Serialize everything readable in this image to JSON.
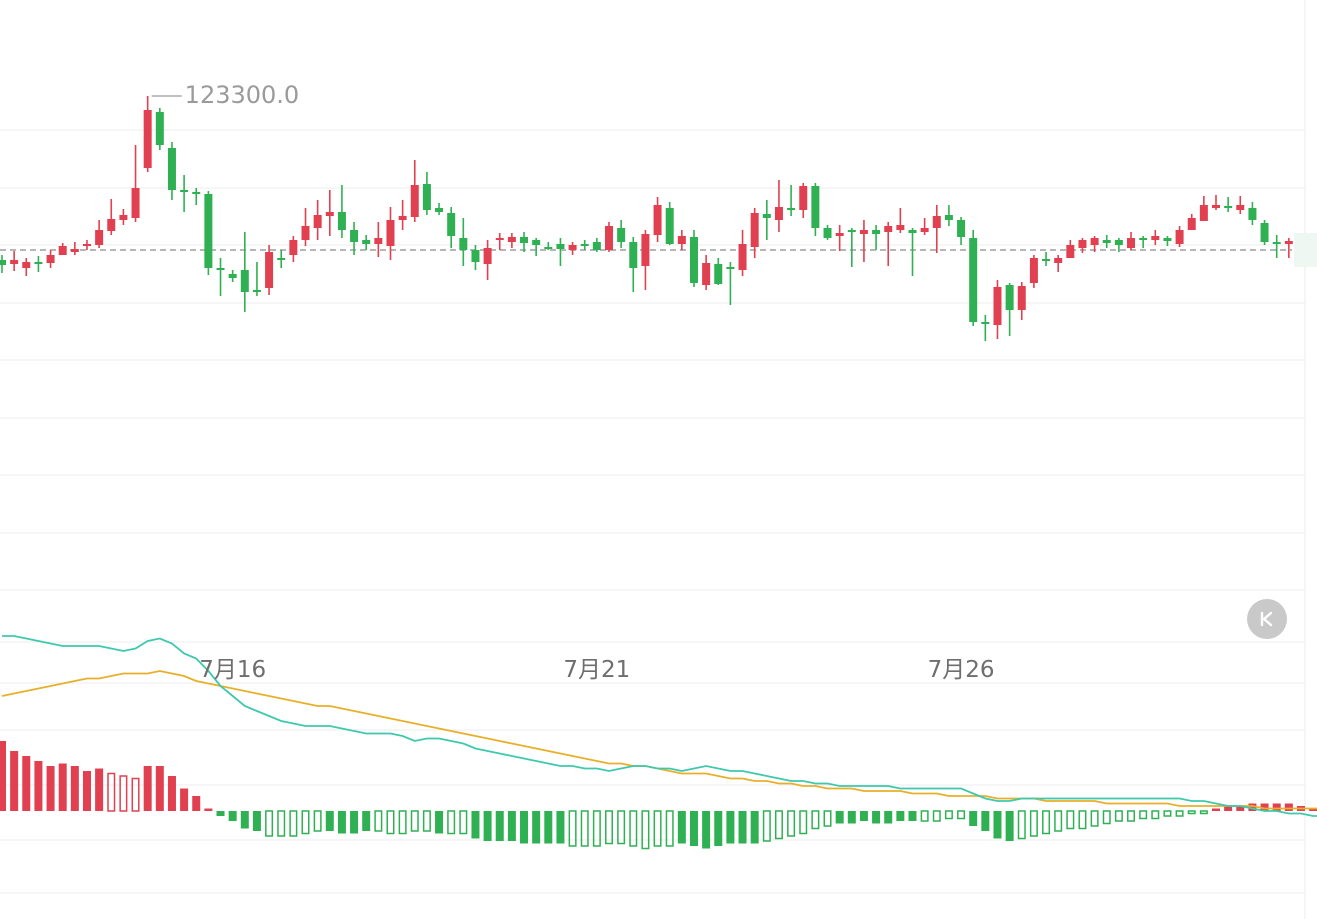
{
  "chart_data": {
    "type": "candlestick",
    "max_label": "123300.0",
    "x_tick_labels": [
      {
        "label": "7月16",
        "candle": 19
      },
      {
        "label": "7月21",
        "candle": 49
      },
      {
        "label": "7月26",
        "candle": 79
      }
    ],
    "candles": [
      [
        260,
        265,
        255,
        273
      ],
      [
        264,
        260,
        251,
        271
      ],
      [
        268,
        262,
        258,
        276
      ],
      [
        262,
        262,
        256,
        272
      ],
      [
        263,
        255,
        250,
        268
      ],
      [
        255,
        246,
        243,
        253
      ],
      [
        252,
        249,
        242,
        255
      ],
      [
        246,
        244,
        240,
        250
      ],
      [
        245,
        230,
        220,
        248
      ],
      [
        231,
        219,
        199,
        235
      ],
      [
        220,
        215,
        209,
        225
      ],
      [
        218,
        188,
        145,
        222
      ],
      [
        168,
        110,
        96,
        172
      ],
      [
        112,
        145,
        108,
        150
      ],
      [
        148,
        190,
        142,
        200
      ],
      [
        190,
        191,
        175,
        212
      ],
      [
        192,
        193,
        188,
        205
      ],
      [
        194,
        268,
        191,
        275
      ],
      [
        268,
        270,
        258,
        296
      ],
      [
        274,
        278,
        270,
        282
      ],
      [
        270,
        292,
        232,
        312
      ],
      [
        290,
        290,
        262,
        296
      ],
      [
        288,
        252,
        245,
        295
      ],
      [
        258,
        258,
        250,
        268
      ],
      [
        255,
        240,
        236,
        262
      ],
      [
        240,
        226,
        208,
        246
      ],
      [
        228,
        215,
        200,
        240
      ],
      [
        216,
        212,
        190,
        236
      ],
      [
        212,
        230,
        185,
        238
      ],
      [
        230,
        242,
        222,
        255
      ],
      [
        240,
        244,
        235,
        250
      ],
      [
        244,
        238,
        222,
        257
      ],
      [
        246,
        220,
        207,
        260
      ],
      [
        220,
        216,
        200,
        230
      ],
      [
        217,
        185,
        160,
        222
      ],
      [
        184,
        210,
        172,
        215
      ],
      [
        208,
        212,
        203,
        215
      ],
      [
        213,
        236,
        207,
        248
      ],
      [
        238,
        250,
        218,
        266
      ],
      [
        250,
        262,
        245,
        270
      ],
      [
        264,
        248,
        240,
        280
      ],
      [
        240,
        238,
        233,
        250
      ],
      [
        242,
        237,
        233,
        248
      ],
      [
        237,
        243,
        232,
        252
      ],
      [
        240,
        245,
        238,
        256
      ],
      [
        247,
        247,
        242,
        250
      ],
      [
        244,
        249,
        238,
        266
      ],
      [
        250,
        245,
        242,
        255
      ],
      [
        244,
        245,
        240,
        250
      ],
      [
        242,
        250,
        238,
        252
      ],
      [
        250,
        226,
        222,
        252
      ],
      [
        228,
        242,
        220,
        248
      ],
      [
        242,
        268,
        237,
        292
      ],
      [
        266,
        234,
        230,
        290
      ],
      [
        235,
        205,
        197,
        242
      ],
      [
        208,
        244,
        202,
        245
      ],
      [
        244,
        236,
        230,
        250
      ],
      [
        237,
        283,
        230,
        287
      ],
      [
        285,
        263,
        255,
        290
      ],
      [
        264,
        284,
        258,
        285
      ],
      [
        267,
        268,
        262,
        305
      ],
      [
        270,
        244,
        230,
        276
      ],
      [
        247,
        213,
        208,
        258
      ],
      [
        214,
        218,
        200,
        240
      ],
      [
        220,
        207,
        180,
        232
      ],
      [
        208,
        208,
        185,
        216
      ],
      [
        210,
        186,
        183,
        218
      ],
      [
        186,
        228,
        183,
        236
      ],
      [
        228,
        238,
        225,
        240
      ],
      [
        236,
        233,
        225,
        251
      ],
      [
        230,
        232,
        228,
        267
      ],
      [
        234,
        230,
        220,
        262
      ],
      [
        230,
        234,
        225,
        250
      ],
      [
        232,
        226,
        222,
        266
      ],
      [
        230,
        225,
        208,
        233
      ],
      [
        230,
        233,
        228,
        276
      ],
      [
        232,
        228,
        218,
        235
      ],
      [
        228,
        216,
        205,
        253
      ],
      [
        215,
        220,
        205,
        226
      ],
      [
        220,
        237,
        217,
        245
      ],
      [
        238,
        322,
        230,
        326
      ],
      [
        322,
        322,
        315,
        341
      ],
      [
        325,
        287,
        280,
        339
      ],
      [
        285,
        310,
        283,
        336
      ],
      [
        310,
        286,
        282,
        320
      ],
      [
        283,
        258,
        255,
        288
      ],
      [
        259,
        260,
        252,
        266
      ],
      [
        263,
        258,
        255,
        272
      ],
      [
        258,
        245,
        240,
        258
      ],
      [
        248,
        240,
        238,
        253
      ],
      [
        245,
        238,
        236,
        252
      ],
      [
        240,
        243,
        235,
        248
      ],
      [
        240,
        245,
        238,
        252
      ],
      [
        248,
        238,
        232,
        250
      ],
      [
        238,
        240,
        236,
        248
      ],
      [
        240,
        236,
        230,
        245
      ],
      [
        238,
        241,
        236,
        246
      ],
      [
        244,
        230,
        226,
        247
      ],
      [
        230,
        218,
        214,
        228
      ],
      [
        221,
        205,
        196,
        221
      ],
      [
        208,
        205,
        195,
        210
      ],
      [
        206,
        208,
        197,
        212
      ],
      [
        210,
        205,
        196,
        214
      ],
      [
        208,
        220,
        202,
        225
      ],
      [
        223,
        242,
        220,
        245
      ],
      [
        242,
        242,
        235,
        258
      ],
      [
        244,
        241,
        238,
        258
      ],
      [
        242,
        242,
        238,
        262
      ],
      [
        245,
        242,
        236,
        254
      ],
      [
        249,
        247,
        238,
        262
      ]
    ],
    "macd": {
      "hist": [
        -28,
        -24,
        -22,
        -20,
        -18,
        -19,
        -18,
        -16,
        -17,
        -15,
        -14,
        -13,
        -18,
        -18,
        -14,
        -9,
        -6,
        -1,
        2,
        4,
        7,
        8,
        10,
        10,
        10,
        9,
        8,
        8,
        9,
        9,
        8,
        8,
        9,
        9,
        8,
        8,
        9,
        9,
        9,
        11,
        12,
        12,
        12,
        13,
        13,
        13,
        13,
        14,
        14,
        14,
        13,
        13,
        14,
        15,
        14,
        14,
        13,
        14,
        15,
        14,
        13,
        13,
        13,
        12,
        11,
        10,
        9,
        7,
        6,
        5,
        5,
        4,
        5,
        5,
        4,
        4,
        4,
        4,
        3,
        3,
        6,
        8,
        11,
        12,
        11,
        10,
        9,
        8,
        7,
        7,
        6,
        5,
        4,
        4,
        3,
        3,
        2,
        2,
        1,
        1,
        -1,
        -2,
        -2,
        -3,
        -3,
        -3,
        -3,
        -2,
        -1,
        0,
        1,
        1
      ],
      "hist_hollow": [
        false,
        false,
        false,
        false,
        false,
        false,
        false,
        false,
        false,
        true,
        true,
        true,
        false,
        false,
        false,
        false,
        false,
        false,
        false,
        false,
        false,
        false,
        true,
        true,
        true,
        true,
        true,
        false,
        false,
        false,
        false,
        true,
        true,
        true,
        true,
        true,
        false,
        true,
        true,
        false,
        false,
        false,
        false,
        false,
        false,
        false,
        false,
        true,
        true,
        true,
        true,
        true,
        true,
        true,
        true,
        true,
        false,
        false,
        false,
        false,
        false,
        false,
        false,
        true,
        true,
        true,
        true,
        true,
        true,
        false,
        false,
        false,
        false,
        false,
        false,
        false,
        true,
        true,
        true,
        true,
        false,
        false,
        false,
        false,
        true,
        true,
        true,
        true,
        true,
        true,
        true,
        true,
        true,
        true,
        true,
        true,
        true,
        true,
        true,
        true,
        false,
        false,
        false,
        false,
        false,
        false,
        false,
        false,
        false,
        false,
        false,
        false
      ],
      "dif": [
        -70,
        -70,
        -69,
        -68,
        -67,
        -66,
        -66,
        -66,
        -66,
        -65,
        -64,
        -65,
        -68,
        -69,
        -67,
        -63,
        -61,
        -56,
        -50,
        -46,
        -42,
        -40,
        -38,
        -36,
        -35,
        -34,
        -34,
        -34,
        -33,
        -32,
        -31,
        -31,
        -31,
        -30,
        -28,
        -29,
        -29,
        -28,
        -27,
        -25,
        -24,
        -23,
        -22,
        -21,
        -20,
        -19,
        -18,
        -18,
        -17,
        -17,
        -16,
        -17,
        -18,
        -18,
        -17,
        -17,
        -16,
        -17,
        -18,
        -17,
        -16,
        -16,
        -15,
        -14,
        -13,
        -12,
        -12,
        -11,
        -11,
        -10,
        -10,
        -10,
        -10,
        -10,
        -9,
        -9,
        -9,
        -9,
        -9,
        -9,
        -7,
        -5,
        -4,
        -4,
        -5,
        -5,
        -5,
        -5,
        -5,
        -5,
        -5,
        -5,
        -5,
        -5,
        -5,
        -5,
        -5,
        -5,
        -4,
        -4,
        -3,
        -2,
        -2,
        -1,
        0,
        0,
        1,
        1,
        2,
        2,
        2,
        2
      ],
      "dea": [
        -46,
        -47,
        -48,
        -49,
        -50,
        -51,
        -52,
        -53,
        -53,
        -54,
        -55,
        -55,
        -55,
        -56,
        -55,
        -54,
        -52,
        -51,
        -50,
        -49,
        -48,
        -47,
        -46,
        -45,
        -44,
        -43,
        -42,
        -42,
        -41,
        -40,
        -39,
        -38,
        -37,
        -36,
        -35,
        -34,
        -33,
        -32,
        -31,
        -30,
        -29,
        -28,
        -27,
        -26,
        -25,
        -24,
        -23,
        -22,
        -21,
        -20,
        -19,
        -19,
        -18,
        -18,
        -17,
        -16,
        -15,
        -15,
        -15,
        -14,
        -13,
        -13,
        -12,
        -12,
        -11,
        -11,
        -10,
        -10,
        -9,
        -9,
        -9,
        -8,
        -8,
        -8,
        -8,
        -7,
        -7,
        -7,
        -6,
        -6,
        -6,
        -6,
        -5,
        -5,
        -5,
        -5,
        -4,
        -4,
        -4,
        -4,
        -4,
        -3,
        -3,
        -3,
        -3,
        -3,
        -3,
        -2,
        -2,
        -2,
        -2,
        -2,
        -2,
        -2,
        -1,
        -1,
        -1,
        -1,
        -1,
        -1,
        0,
        0
      ]
    },
    "colors": {
      "up": "#e0404f",
      "down": "#2fb153",
      "dif": "#3ec9ad",
      "dea": "#e8b02a",
      "grid": "#ececec",
      "label": "#6e6e6e"
    }
  },
  "controls": {
    "k_button_icon": "collapse-k-icon"
  }
}
